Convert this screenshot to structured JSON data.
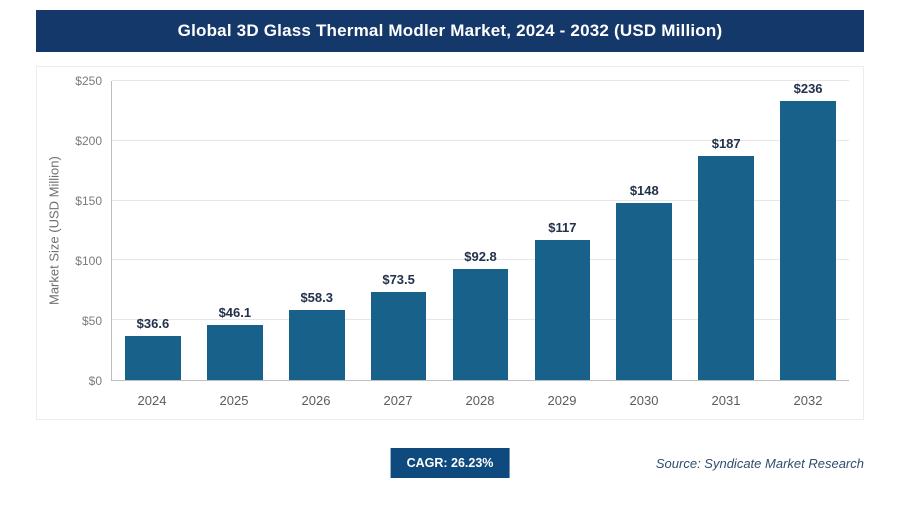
{
  "header": {
    "title": "Global 3D Glass Thermal Modler Market, 2024 - 2032 (USD Million)"
  },
  "chart_data": {
    "type": "bar",
    "title": "Global 3D Glass Thermal Modler Market, 2024 - 2032 (USD Million)",
    "categories": [
      "2024",
      "2025",
      "2026",
      "2027",
      "2028",
      "2029",
      "2030",
      "2031",
      "2032"
    ],
    "values": [
      36.6,
      46.1,
      58.3,
      73.5,
      92.8,
      117,
      148,
      187,
      236
    ],
    "value_labels": [
      "$36.6",
      "$46.1",
      "$58.3",
      "$73.5",
      "$92.8",
      "$117",
      "$148",
      "$187",
      "$236"
    ],
    "xlabel": "",
    "ylabel": "Market Size (USD Million)",
    "ylim": [
      0,
      250
    ],
    "yticks": [
      "$0",
      "$50",
      "$100",
      "$150",
      "$200",
      "$250"
    ],
    "ytick_values": [
      0,
      50,
      100,
      150,
      200,
      250
    ],
    "grid": "horizontal",
    "legend": "none",
    "bar_color": "#17618a"
  },
  "footer": {
    "cagr_label": "CAGR: 26.23%",
    "source": "Source: Syndicate Market Research"
  },
  "colors": {
    "header_bg": "#15386a",
    "bar": "#17618a",
    "cagr_bg": "#0e4a7d",
    "source_text": "#2f4d70"
  }
}
